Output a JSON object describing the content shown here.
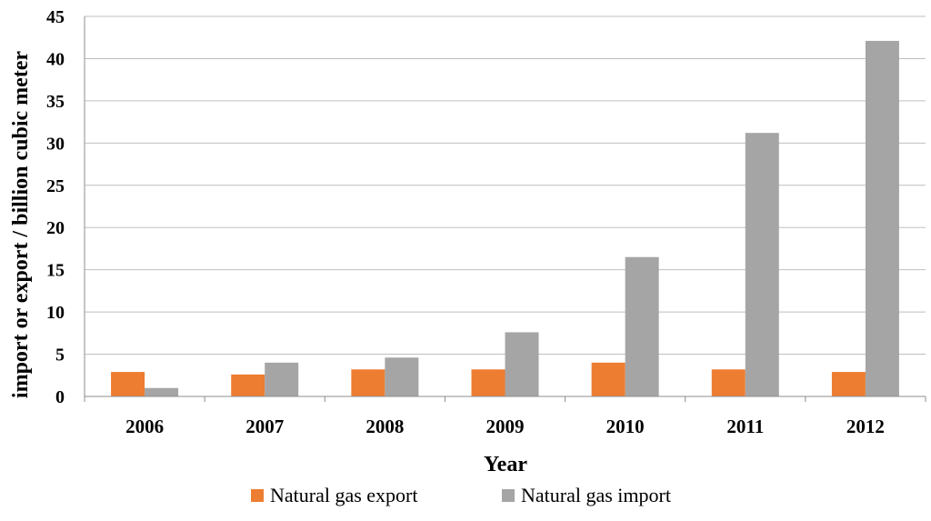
{
  "colors": {
    "export": "#ED7D31",
    "import": "#A5A5A5",
    "grid": "#BFBFBF",
    "axis": "#8C8C8C"
  },
  "chart_data": {
    "type": "bar",
    "title": "",
    "xlabel": "Year",
    "ylabel": "import or export / billion cubic meter",
    "categories": [
      "2006",
      "2007",
      "2008",
      "2009",
      "2010",
      "2011",
      "2012"
    ],
    "series": [
      {
        "name": "Natural gas export",
        "values": [
          2.9,
          2.6,
          3.2,
          3.2,
          4.0,
          3.2,
          2.9
        ]
      },
      {
        "name": "Natural gas import",
        "values": [
          1.0,
          4.0,
          4.6,
          7.6,
          16.5,
          31.2,
          42.1
        ]
      }
    ],
    "ylim": [
      0,
      45
    ],
    "yticks": [
      "0",
      "5",
      "10",
      "15",
      "20",
      "25",
      "30",
      "35",
      "40",
      "45"
    ],
    "grid": true,
    "legend": "bottom"
  }
}
